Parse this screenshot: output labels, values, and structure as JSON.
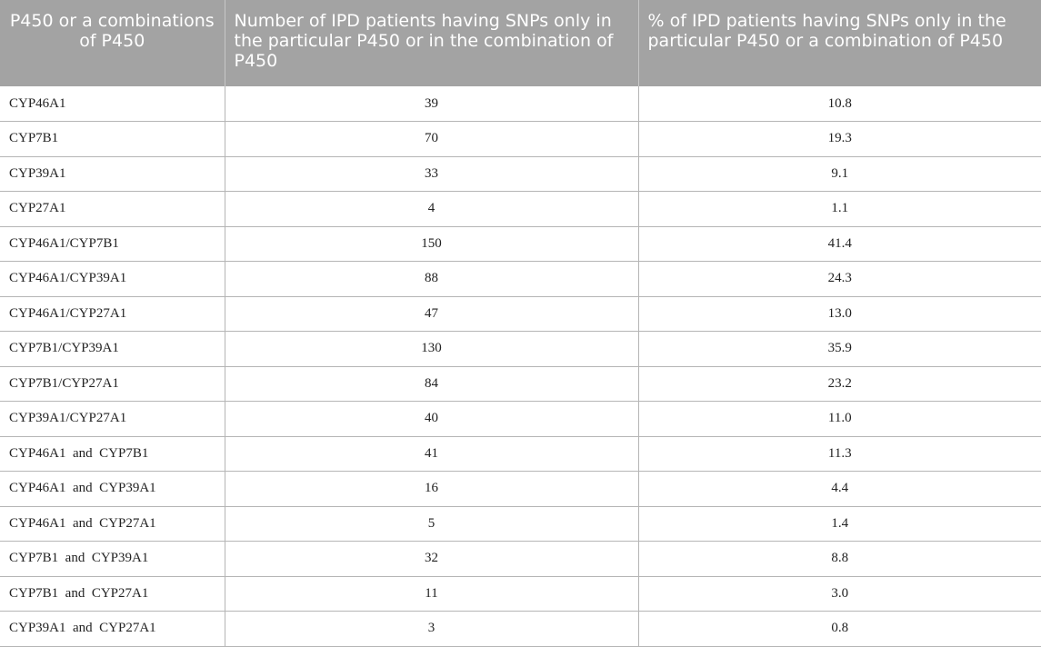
{
  "table": {
    "headers": [
      "P450 or a combinations of P450",
      "Number of IPD patients having SNPs only in the particular P450 or in the combination of P450",
      "% of IPD patients having SNPs only in the particular P450 or a combination of P450"
    ],
    "rows": [
      {
        "name": "CYP46A1",
        "count": "39",
        "percent": "10.8"
      },
      {
        "name": "CYP7B1",
        "count": "70",
        "percent": "19.3"
      },
      {
        "name": "CYP39A1",
        "count": "33",
        "percent": "9.1"
      },
      {
        "name": "CYP27A1",
        "count": "4",
        "percent": "1.1"
      },
      {
        "name": "CYP46A1/CYP7B1",
        "count": "150",
        "percent": "41.4"
      },
      {
        "name": "CYP46A1/CYP39A1",
        "count": "88",
        "percent": "24.3"
      },
      {
        "name": "CYP46A1/CYP27A1",
        "count": "47",
        "percent": "13.0"
      },
      {
        "name": "CYP7B1/CYP39A1",
        "count": "130",
        "percent": "35.9"
      },
      {
        "name": "CYP7B1/CYP27A1",
        "count": "84",
        "percent": "23.2"
      },
      {
        "name": "CYP39A1/CYP27A1",
        "count": "40",
        "percent": "11.0"
      },
      {
        "name": "CYP46A1  and  CYP7B1",
        "count": "41",
        "percent": "11.3"
      },
      {
        "name": "CYP46A1  and  CYP39A1",
        "count": "16",
        "percent": "4.4"
      },
      {
        "name": "CYP46A1  and  CYP27A1",
        "count": "5",
        "percent": "1.4"
      },
      {
        "name": "CYP7B1  and  CYP39A1",
        "count": "32",
        "percent": "8.8"
      },
      {
        "name": "CYP7B1  and  CYP27A1",
        "count": "11",
        "percent": "3.0"
      },
      {
        "name": "CYP39A1  and  CYP27A1",
        "count": "3",
        "percent": "0.8"
      }
    ]
  }
}
